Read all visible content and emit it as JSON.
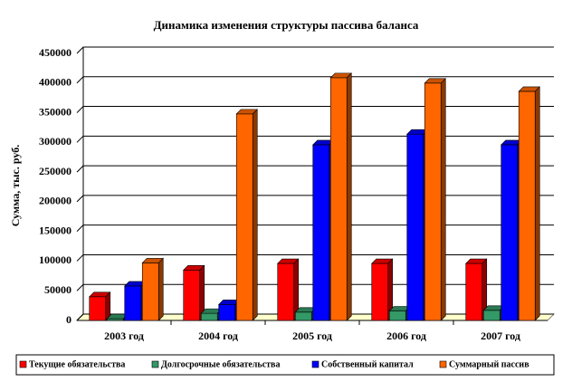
{
  "chart_data": {
    "type": "bar3d",
    "title": "Динамика изменения структуры пассива баланса",
    "y_label": "Сумма, тыс. руб.",
    "categories": [
      "2003 год",
      "2004 год",
      "2005 год",
      "2006 год",
      "2007 год"
    ],
    "series": [
      {
        "name": "Текущие обязательства",
        "color": "#ff0000",
        "values": [
          40000,
          85000,
          96000,
          96000,
          96000
        ]
      },
      {
        "name": "Долгосрочные обязательства",
        "color": "#339966",
        "values": [
          3000,
          12000,
          14000,
          16000,
          17000
        ]
      },
      {
        "name": "Собственный капитал",
        "color": "#0000ff",
        "values": [
          58000,
          27000,
          296000,
          314000,
          296000
        ]
      },
      {
        "name": "Суммарный пассив",
        "color": "#ff6600",
        "values": [
          97000,
          348000,
          409000,
          400000,
          386000
        ]
      }
    ],
    "ylim": [
      0,
      450000
    ],
    "yticks": [
      0,
      50000,
      100000,
      150000,
      200000,
      250000,
      300000,
      350000,
      400000,
      450000
    ],
    "grid": true,
    "legend": "bottom"
  }
}
